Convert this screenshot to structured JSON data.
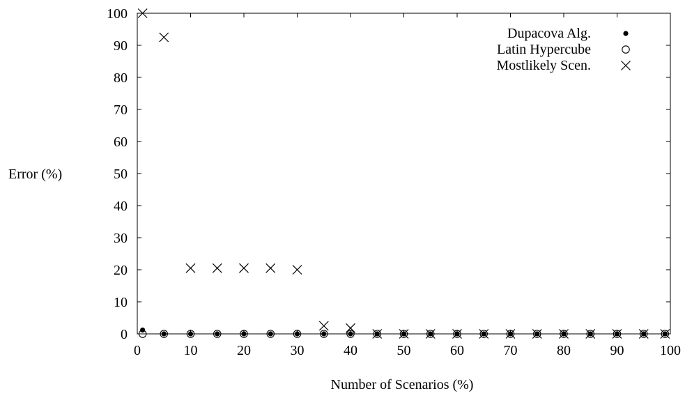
{
  "chart_data": {
    "type": "scatter",
    "xlabel": "Number of Scenarios (%)",
    "ylabel": "Error (%)",
    "xlim": [
      0,
      100
    ],
    "ylim": [
      0,
      100
    ],
    "xticks": [
      0,
      10,
      20,
      30,
      40,
      50,
      60,
      70,
      80,
      90,
      100
    ],
    "yticks": [
      0,
      10,
      20,
      30,
      40,
      50,
      60,
      70,
      80,
      90,
      100
    ],
    "grid": false,
    "legend_position": "top-right",
    "series": [
      {
        "name": "Dupacova Alg.",
        "marker": "filled-circle",
        "x": [
          1,
          5,
          10,
          15,
          20,
          25,
          30,
          35,
          40,
          45,
          50,
          55,
          60,
          65,
          70,
          75,
          80,
          85,
          90,
          95,
          99
        ],
        "y": [
          1.2,
          0,
          0,
          0,
          0,
          0,
          0,
          0,
          0,
          0,
          0,
          0,
          0,
          0,
          0,
          0,
          0,
          0,
          0,
          0,
          0
        ]
      },
      {
        "name": "Latin Hypercube",
        "marker": "open-circle",
        "x": [
          1,
          5,
          10,
          15,
          20,
          25,
          30,
          35,
          40,
          45,
          50,
          55,
          60,
          65,
          70,
          75,
          80,
          85,
          90,
          95,
          99
        ],
        "y": [
          0,
          0,
          0,
          0,
          0,
          0,
          0,
          0,
          0,
          0,
          0,
          0,
          0,
          0,
          0,
          0,
          0,
          0,
          0,
          0,
          0
        ]
      },
      {
        "name": "Mostlikely Scen.",
        "marker": "cross",
        "x": [
          1,
          5,
          10,
          15,
          20,
          25,
          30,
          35,
          40,
          45,
          50,
          55,
          60,
          65,
          70,
          75,
          80,
          85,
          90,
          95,
          99
        ],
        "y": [
          100,
          92.5,
          20.5,
          20.5,
          20.5,
          20.5,
          20,
          2.5,
          1.8,
          0,
          0,
          0,
          0,
          0,
          0,
          0,
          0,
          0,
          0,
          0,
          0
        ]
      }
    ]
  }
}
